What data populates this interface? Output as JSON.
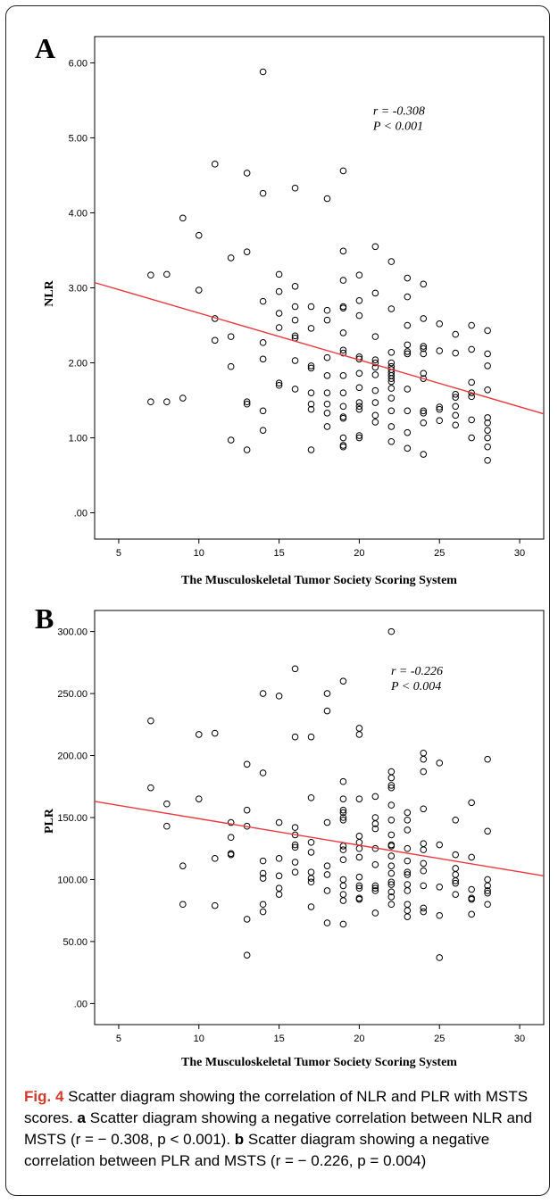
{
  "caption": {
    "fig_label": "Fig. 4",
    "title": "Scatter diagram showing the correlation of NLR and PLR with MSTS scores.",
    "part_a_letter": "a",
    "part_a_text": "Scatter diagram showing a negative correlation between NLR and MSTS (r = − 0.308, p < 0.001).",
    "part_b_letter": "b",
    "part_b_text": "Scatter diagram showing a negative correlation between PLR and MSTS (r = − 0.226, p = 0.004)"
  },
  "colors": {
    "regression_line": "#e8383d",
    "points": "#000000"
  },
  "chart_data": [
    {
      "panel": "A",
      "type": "scatter",
      "xlabel": "The Musculoskeletal Tumor Society Scoring System",
      "ylabel": "NLR",
      "xlim": [
        3.5,
        31.5
      ],
      "ylim": [
        -0.35,
        6.35
      ],
      "x_ticks": [
        5,
        10,
        15,
        20,
        25,
        30
      ],
      "y_ticks": [
        0,
        1,
        2,
        3,
        4,
        5,
        6
      ],
      "y_tick_labels": [
        ".00",
        "1.00",
        "2.00",
        "3.00",
        "4.00",
        "5.00",
        "6.00"
      ],
      "annotation": [
        "r = -0.308",
        "P < 0.001"
      ],
      "fit_line": {
        "x": [
          3.5,
          31.5
        ],
        "y": [
          3.07,
          1.32
        ]
      },
      "points": [
        [
          7,
          3.17
        ],
        [
          7,
          1.48
        ],
        [
          8,
          3.18
        ],
        [
          8,
          1.48
        ],
        [
          9,
          3.93
        ],
        [
          9,
          1.53
        ],
        [
          10,
          3.7
        ],
        [
          10,
          2.97
        ],
        [
          11,
          4.65
        ],
        [
          11,
          2.59
        ],
        [
          11,
          2.3
        ],
        [
          12,
          3.4
        ],
        [
          12,
          2.35
        ],
        [
          12,
          1.95
        ],
        [
          12,
          0.97
        ],
        [
          13,
          4.53
        ],
        [
          13,
          3.48
        ],
        [
          13,
          1.48
        ],
        [
          13,
          1.45
        ],
        [
          13,
          0.84
        ],
        [
          14,
          5.88
        ],
        [
          14,
          4.26
        ],
        [
          14,
          2.82
        ],
        [
          14,
          2.27
        ],
        [
          14,
          2.05
        ],
        [
          14,
          1.36
        ],
        [
          14,
          1.1
        ],
        [
          15,
          3.18
        ],
        [
          15,
          2.95
        ],
        [
          15,
          2.66
        ],
        [
          15,
          2.47
        ],
        [
          15,
          1.73
        ],
        [
          15,
          1.7
        ],
        [
          16,
          4.33
        ],
        [
          16,
          3.02
        ],
        [
          16,
          2.75
        ],
        [
          16,
          2.57
        ],
        [
          16,
          2.36
        ],
        [
          16,
          2.33
        ],
        [
          16,
          2.03
        ],
        [
          16,
          1.65
        ],
        [
          17,
          2.75
        ],
        [
          17,
          2.46
        ],
        [
          17,
          1.96
        ],
        [
          17,
          1.93
        ],
        [
          17,
          1.6
        ],
        [
          17,
          1.45
        ],
        [
          17,
          1.38
        ],
        [
          17,
          0.84
        ],
        [
          18,
          4.19
        ],
        [
          18,
          2.7
        ],
        [
          18,
          2.57
        ],
        [
          18,
          2.07
        ],
        [
          18,
          1.83
        ],
        [
          18,
          1.6
        ],
        [
          18,
          1.45
        ],
        [
          18,
          1.33
        ],
        [
          18,
          1.15
        ],
        [
          19,
          4.56
        ],
        [
          19,
          3.49
        ],
        [
          19,
          3.1
        ],
        [
          19,
          2.75
        ],
        [
          19,
          2.73
        ],
        [
          19,
          2.4
        ],
        [
          19,
          2.17
        ],
        [
          19,
          2.13
        ],
        [
          19,
          1.83
        ],
        [
          19,
          1.6
        ],
        [
          19,
          1.42
        ],
        [
          19,
          1.28
        ],
        [
          19,
          1.26
        ],
        [
          19,
          1.0
        ],
        [
          19,
          0.9
        ],
        [
          19,
          0.88
        ],
        [
          20,
          3.17
        ],
        [
          20,
          2.83
        ],
        [
          20,
          2.63
        ],
        [
          20,
          2.08
        ],
        [
          20,
          2.05
        ],
        [
          20,
          1.86
        ],
        [
          20,
          1.67
        ],
        [
          20,
          1.47
        ],
        [
          20,
          1.42
        ],
        [
          20,
          1.38
        ],
        [
          20,
          1.03
        ],
        [
          20,
          1.0
        ],
        [
          21,
          3.55
        ],
        [
          21,
          2.93
        ],
        [
          21,
          2.35
        ],
        [
          21,
          2.04
        ],
        [
          21,
          2.0
        ],
        [
          21,
          1.94
        ],
        [
          21,
          1.84
        ],
        [
          21,
          1.63
        ],
        [
          21,
          1.47
        ],
        [
          21,
          1.3
        ],
        [
          21,
          1.21
        ],
        [
          22,
          3.35
        ],
        [
          22,
          2.72
        ],
        [
          22,
          2.14
        ],
        [
          22,
          2.0
        ],
        [
          22,
          1.95
        ],
        [
          22,
          1.91
        ],
        [
          22,
          1.87
        ],
        [
          22,
          1.83
        ],
        [
          22,
          1.79
        ],
        [
          22,
          1.75
        ],
        [
          22,
          1.66
        ],
        [
          22,
          1.53
        ],
        [
          22,
          1.36
        ],
        [
          22,
          1.15
        ],
        [
          22,
          0.95
        ],
        [
          23,
          3.13
        ],
        [
          23,
          2.88
        ],
        [
          23,
          2.5
        ],
        [
          23,
          2.24
        ],
        [
          23,
          2.15
        ],
        [
          23,
          2.12
        ],
        [
          23,
          1.65
        ],
        [
          23,
          1.36
        ],
        [
          23,
          1.07
        ],
        [
          23,
          0.86
        ],
        [
          24,
          3.05
        ],
        [
          24,
          2.59
        ],
        [
          24,
          2.22
        ],
        [
          24,
          2.19
        ],
        [
          24,
          2.12
        ],
        [
          24,
          1.86
        ],
        [
          24,
          1.79
        ],
        [
          24,
          1.36
        ],
        [
          24,
          1.33
        ],
        [
          24,
          1.2
        ],
        [
          24,
          0.78
        ],
        [
          25,
          2.52
        ],
        [
          25,
          2.16
        ],
        [
          25,
          1.41
        ],
        [
          25,
          1.38
        ],
        [
          25,
          1.23
        ],
        [
          26,
          2.38
        ],
        [
          26,
          2.13
        ],
        [
          26,
          1.58
        ],
        [
          26,
          1.54
        ],
        [
          26,
          1.42
        ],
        [
          26,
          1.3
        ],
        [
          26,
          1.17
        ],
        [
          27,
          2.5
        ],
        [
          27,
          2.18
        ],
        [
          27,
          1.74
        ],
        [
          27,
          1.6
        ],
        [
          27,
          1.55
        ],
        [
          27,
          1.24
        ],
        [
          27,
          1.0
        ],
        [
          28,
          2.43
        ],
        [
          28,
          2.12
        ],
        [
          28,
          1.96
        ],
        [
          28,
          1.64
        ],
        [
          28,
          1.27
        ],
        [
          28,
          1.2
        ],
        [
          28,
          1.1
        ],
        [
          28,
          1.0
        ],
        [
          28,
          0.88
        ],
        [
          28,
          0.7
        ]
      ]
    },
    {
      "panel": "B",
      "type": "scatter",
      "xlabel": "The Musculoskeletal Tumor Society Scoring System",
      "ylabel": "PLR",
      "xlim": [
        3.5,
        31.5
      ],
      "ylim": [
        -17,
        317
      ],
      "x_ticks": [
        5,
        10,
        15,
        20,
        25,
        30
      ],
      "y_ticks": [
        0,
        50,
        100,
        150,
        200,
        250,
        300
      ],
      "y_tick_labels": [
        ".00",
        "50.00",
        "100.00",
        "150.00",
        "200.00",
        "250.00",
        "300.00"
      ],
      "annotation": [
        "r = -0.226",
        "P < 0.004"
      ],
      "fit_line": {
        "x": [
          3.5,
          31.5
        ],
        "y": [
          163,
          103
        ]
      },
      "points": [
        [
          7,
          228
        ],
        [
          7,
          174
        ],
        [
          8,
          161
        ],
        [
          8,
          143
        ],
        [
          9,
          111
        ],
        [
          9,
          80
        ],
        [
          10,
          217
        ],
        [
          10,
          165
        ],
        [
          11,
          218
        ],
        [
          11,
          117
        ],
        [
          11,
          79
        ],
        [
          12,
          146
        ],
        [
          12,
          134
        ],
        [
          12,
          121
        ],
        [
          12,
          120
        ],
        [
          13,
          193
        ],
        [
          13,
          156
        ],
        [
          13,
          143
        ],
        [
          13,
          68
        ],
        [
          13,
          39
        ],
        [
          14,
          250
        ],
        [
          14,
          186
        ],
        [
          14,
          115
        ],
        [
          14,
          105
        ],
        [
          14,
          101
        ],
        [
          14,
          80
        ],
        [
          14,
          74
        ],
        [
          15,
          248
        ],
        [
          15,
          146
        ],
        [
          15,
          117
        ],
        [
          15,
          103
        ],
        [
          15,
          93
        ],
        [
          15,
          88
        ],
        [
          16,
          270
        ],
        [
          16,
          215
        ],
        [
          16,
          142
        ],
        [
          16,
          136
        ],
        [
          16,
          128
        ],
        [
          16,
          126
        ],
        [
          16,
          114
        ],
        [
          16,
          106
        ],
        [
          17,
          215
        ],
        [
          17,
          166
        ],
        [
          17,
          130
        ],
        [
          17,
          122
        ],
        [
          17,
          106
        ],
        [
          17,
          101
        ],
        [
          17,
          98
        ],
        [
          17,
          78
        ],
        [
          18,
          250
        ],
        [
          18,
          236
        ],
        [
          18,
          146
        ],
        [
          18,
          111
        ],
        [
          18,
          104
        ],
        [
          18,
          91
        ],
        [
          18,
          65
        ],
        [
          19,
          260
        ],
        [
          19,
          179
        ],
        [
          19,
          165
        ],
        [
          19,
          156
        ],
        [
          19,
          154
        ],
        [
          19,
          150
        ],
        [
          19,
          148
        ],
        [
          19,
          127
        ],
        [
          19,
          124
        ],
        [
          19,
          116
        ],
        [
          19,
          100
        ],
        [
          19,
          95
        ],
        [
          19,
          88
        ],
        [
          19,
          83
        ],
        [
          19,
          64
        ],
        [
          20,
          222
        ],
        [
          20,
          217
        ],
        [
          20,
          165
        ],
        [
          20,
          135
        ],
        [
          20,
          130
        ],
        [
          20,
          125
        ],
        [
          20,
          118
        ],
        [
          20,
          102
        ],
        [
          20,
          95
        ],
        [
          20,
          93
        ],
        [
          20,
          85
        ],
        [
          20,
          84
        ],
        [
          21,
          167
        ],
        [
          21,
          150
        ],
        [
          21,
          145
        ],
        [
          21,
          141
        ],
        [
          21,
          125
        ],
        [
          21,
          112
        ],
        [
          21,
          95
        ],
        [
          21,
          93
        ],
        [
          21,
          91
        ],
        [
          21,
          73
        ],
        [
          22,
          300
        ],
        [
          22,
          187
        ],
        [
          22,
          182
        ],
        [
          22,
          176
        ],
        [
          22,
          174
        ],
        [
          22,
          160
        ],
        [
          22,
          148
        ],
        [
          22,
          136
        ],
        [
          22,
          128
        ],
        [
          22,
          127
        ],
        [
          22,
          119
        ],
        [
          22,
          111
        ],
        [
          22,
          105
        ],
        [
          22,
          98
        ],
        [
          22,
          96
        ],
        [
          22,
          90
        ],
        [
          22,
          86
        ],
        [
          22,
          80
        ],
        [
          23,
          154
        ],
        [
          23,
          148
        ],
        [
          23,
          140
        ],
        [
          23,
          125
        ],
        [
          23,
          115
        ],
        [
          23,
          106
        ],
        [
          23,
          104
        ],
        [
          23,
          96
        ],
        [
          23,
          91
        ],
        [
          23,
          80
        ],
        [
          23,
          75
        ],
        [
          23,
          70
        ],
        [
          24,
          202
        ],
        [
          24,
          197
        ],
        [
          24,
          187
        ],
        [
          24,
          157
        ],
        [
          24,
          129
        ],
        [
          24,
          124
        ],
        [
          24,
          113
        ],
        [
          24,
          107
        ],
        [
          24,
          95
        ],
        [
          24,
          77
        ],
        [
          24,
          74
        ],
        [
          25,
          194
        ],
        [
          25,
          128
        ],
        [
          25,
          94
        ],
        [
          25,
          71
        ],
        [
          25,
          37
        ],
        [
          26,
          148
        ],
        [
          26,
          120
        ],
        [
          26,
          109
        ],
        [
          26,
          104
        ],
        [
          26,
          99
        ],
        [
          26,
          97
        ],
        [
          26,
          88
        ],
        [
          27,
          162
        ],
        [
          27,
          118
        ],
        [
          27,
          92
        ],
        [
          27,
          85
        ],
        [
          27,
          84
        ],
        [
          27,
          72
        ],
        [
          28,
          197
        ],
        [
          28,
          139
        ],
        [
          28,
          100
        ],
        [
          28,
          95
        ],
        [
          28,
          91
        ],
        [
          28,
          89
        ],
        [
          28,
          80
        ]
      ]
    }
  ]
}
